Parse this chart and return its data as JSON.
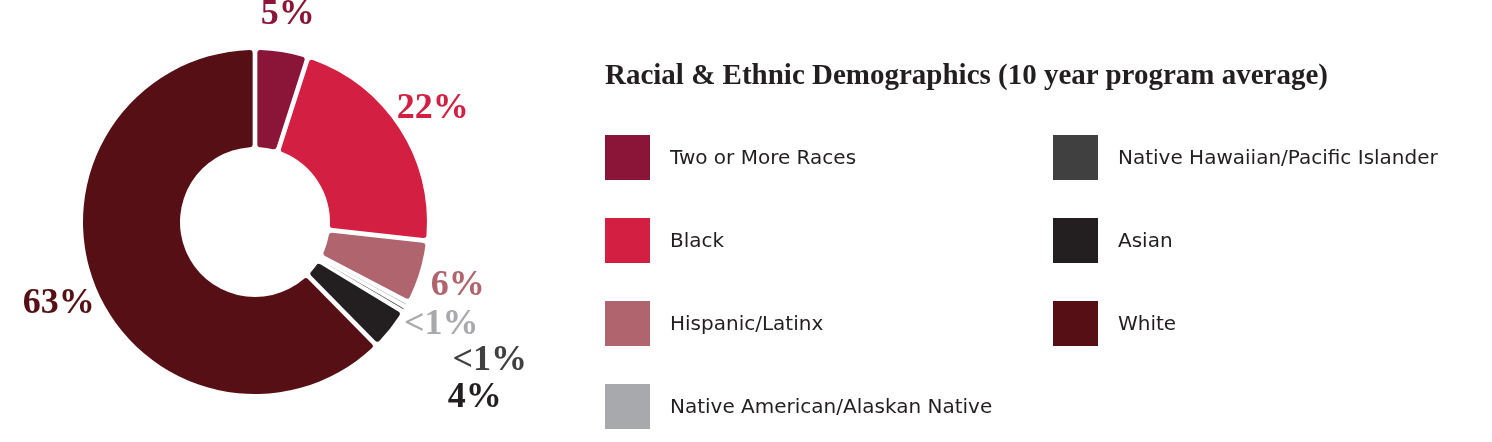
{
  "chart_data": {
    "type": "donut",
    "title": "Racial & Ethnic Demographics (10 year program average)",
    "categories": [
      "Two or More Races",
      "Black",
      "Hispanic/Latinx",
      "Native American/Alaskan Native",
      "Native Hawaiian/Pacific Islander",
      "Asian",
      "White"
    ],
    "values": [
      5,
      22,
      6,
      0.5,
      0.5,
      4,
      63
    ],
    "colors": [
      "#8a1538",
      "#d21f42",
      "#b0646e",
      "#a8a9ad",
      "#404040",
      "#231f20",
      "#560f14"
    ],
    "value_labels": [
      "5%",
      "22%",
      "6%",
      "<1%",
      "<1%",
      "4%",
      "63%"
    ],
    "legend": "right"
  }
}
